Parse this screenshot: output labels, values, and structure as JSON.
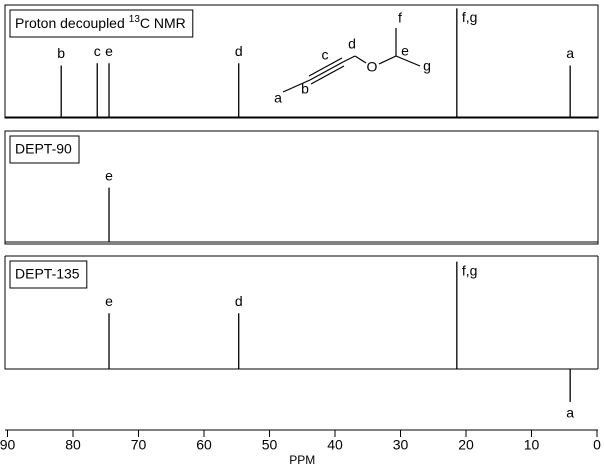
{
  "chart_data": [
    {
      "type": "stick",
      "title": {
        "prefix": "Proton decoupled",
        "superscript": "13",
        "suffix": "C NMR"
      },
      "x": [
        81.8,
        76.3,
        74.5,
        54.7,
        21.4,
        4.1
      ],
      "values": [
        0.46,
        0.48,
        0.48,
        0.48,
        0.97,
        0.46
      ],
      "labels": [
        "b",
        "c",
        "e",
        "d",
        "f,g",
        "a"
      ],
      "color": "#000000",
      "xlim": [
        90,
        0
      ],
      "ylim": [
        0,
        1.0
      ],
      "structure": {
        "atoms": [
          "a",
          "b",
          "c",
          "d",
          "O",
          "e",
          "f",
          "g"
        ]
      }
    },
    {
      "type": "stick",
      "title": "DEPT-90",
      "x": [
        74.5
      ],
      "values": [
        0.49
      ],
      "labels": [
        "e"
      ],
      "color": "#000000",
      "xlim": [
        90,
        0
      ],
      "ylim": [
        0,
        1.0
      ]
    },
    {
      "type": "stick",
      "title": "DEPT-135",
      "x": [
        74.5,
        54.7,
        21.4,
        4.1
      ],
      "values": [
        0.5,
        0.5,
        0.96,
        -0.29
      ],
      "labels": [
        "e",
        "d",
        "f,g",
        "a"
      ],
      "color": "#000000",
      "xlim": [
        90,
        0
      ],
      "ylim": [
        -0.54,
        1.01
      ],
      "xticks": [
        90,
        80,
        70,
        60,
        50,
        40,
        30,
        20,
        10,
        0
      ],
      "xlabel": "PPM"
    }
  ]
}
